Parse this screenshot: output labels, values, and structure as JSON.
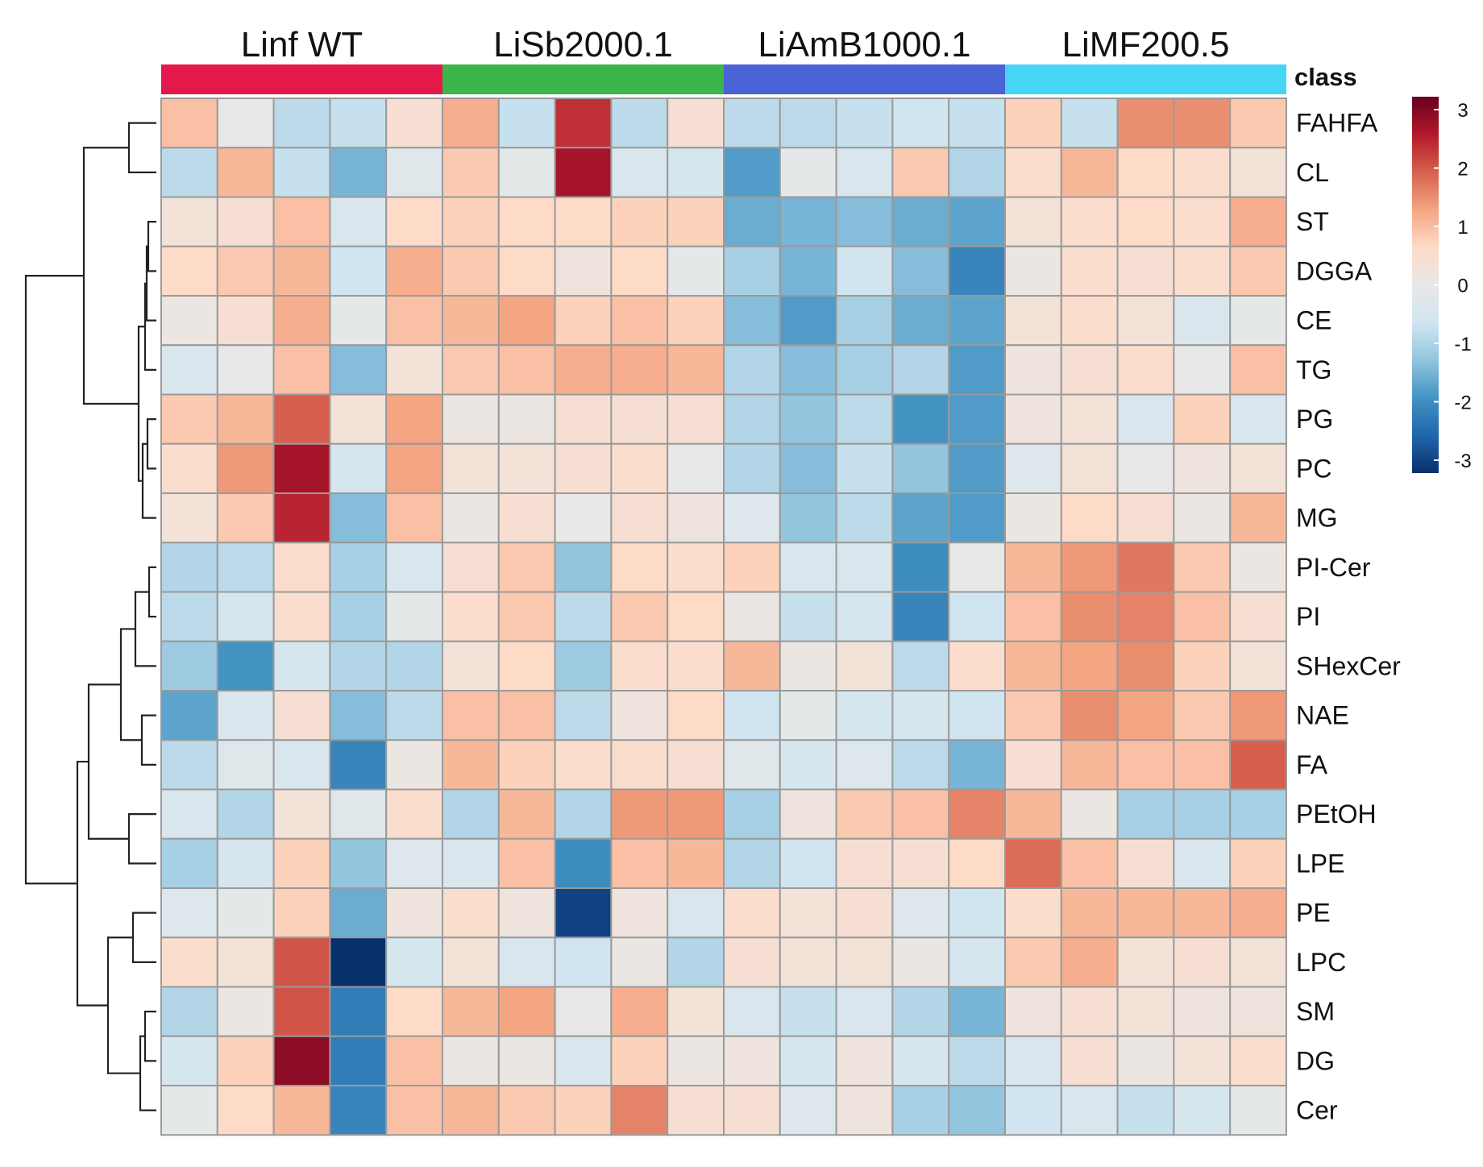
{
  "chart_data": {
    "type": "heatmap",
    "title": "",
    "class_label": "class",
    "groups": [
      {
        "name": "Linf WT",
        "color": "#E4184A",
        "samples": 5
      },
      {
        "name": "LiSb2000.1",
        "color": "#3CB54A",
        "samples": 5
      },
      {
        "name": "LiAmB1000.1",
        "color": "#4A63D6",
        "samples": 5
      },
      {
        "name": "LiMF200.5",
        "color": "#45D6F5",
        "samples": 5
      }
    ],
    "rows": [
      "FAHFA",
      "CL",
      "ST",
      "DGGA",
      "CE",
      "TG",
      "PG",
      "PC",
      "MG",
      "PI-Cer",
      "PI",
      "SHexCer",
      "NAE",
      "FA",
      "PEtOH",
      "LPE",
      "PE",
      "LPC",
      "SM",
      "DG",
      "Cer"
    ],
    "values": [
      [
        0.9,
        0.0,
        -0.8,
        -0.7,
        0.4,
        1.1,
        -0.7,
        2.2,
        -0.8,
        0.4,
        -0.8,
        -0.8,
        -0.7,
        -0.6,
        -0.7,
        0.7,
        -0.7,
        1.4,
        1.4,
        0.8
      ],
      [
        -0.8,
        1.0,
        -0.7,
        -1.4,
        -0.2,
        0.8,
        -0.1,
        2.5,
        -0.4,
        -0.5,
        -1.7,
        -0.1,
        -0.4,
        0.8,
        -0.9,
        0.5,
        1.0,
        0.6,
        0.5,
        0.3
      ],
      [
        0.3,
        0.4,
        0.9,
        -0.4,
        0.6,
        0.7,
        0.6,
        0.6,
        0.7,
        0.7,
        -1.5,
        -1.4,
        -1.3,
        -1.5,
        -1.6,
        0.3,
        0.5,
        0.6,
        0.5,
        1.1
      ],
      [
        0.6,
        0.8,
        1.0,
        -0.6,
        1.1,
        0.8,
        0.6,
        0.2,
        0.6,
        -0.1,
        -1.0,
        -1.4,
        -0.6,
        -1.3,
        -2.0,
        0.1,
        0.5,
        0.4,
        0.5,
        0.8
      ],
      [
        0.1,
        0.4,
        1.1,
        -0.1,
        0.9,
        1.0,
        1.2,
        0.7,
        0.9,
        0.7,
        -1.3,
        -1.7,
        -1.0,
        -1.5,
        -1.6,
        0.3,
        0.5,
        0.3,
        -0.4,
        -0.1
      ],
      [
        -0.4,
        0.0,
        0.9,
        -1.3,
        0.3,
        0.8,
        0.9,
        1.1,
        1.1,
        1.0,
        -0.9,
        -1.3,
        -1.0,
        -0.9,
        -1.7,
        0.2,
        0.4,
        0.5,
        0.0,
        0.9
      ],
      [
        0.8,
        1.0,
        1.8,
        0.3,
        1.2,
        0.1,
        0.1,
        0.4,
        0.4,
        0.4,
        -0.9,
        -1.2,
        -0.8,
        -1.8,
        -1.7,
        0.2,
        0.3,
        -0.4,
        0.7,
        -0.4
      ],
      [
        0.5,
        1.3,
        2.5,
        -0.5,
        1.2,
        0.3,
        0.3,
        0.4,
        0.5,
        0.0,
        -0.9,
        -1.3,
        -0.7,
        -1.2,
        -1.7,
        -0.3,
        0.3,
        0.0,
        0.2,
        0.3
      ],
      [
        0.3,
        0.8,
        2.3,
        -1.3,
        0.9,
        0.1,
        0.4,
        0.0,
        0.4,
        0.2,
        -0.3,
        -1.2,
        -0.8,
        -1.6,
        -1.7,
        0.1,
        0.6,
        0.4,
        0.1,
        1.0
      ],
      [
        -0.9,
        -0.8,
        0.5,
        -1.0,
        -0.4,
        0.4,
        0.8,
        -1.2,
        0.6,
        0.5,
        0.7,
        -0.4,
        -0.4,
        -1.9,
        0.0,
        1.0,
        1.3,
        1.6,
        0.8,
        0.1
      ],
      [
        -0.8,
        -0.5,
        0.5,
        -1.0,
        -0.1,
        0.5,
        0.8,
        -0.8,
        0.8,
        0.6,
        0.1,
        -0.7,
        -0.5,
        -2.0,
        -0.6,
        0.9,
        1.4,
        1.5,
        0.9,
        0.4
      ],
      [
        -1.1,
        -1.8,
        -0.5,
        -0.9,
        -0.9,
        0.3,
        0.6,
        -1.1,
        0.5,
        0.5,
        1.0,
        0.1,
        0.3,
        -0.8,
        0.5,
        1.0,
        1.2,
        1.4,
        0.7,
        0.3
      ],
      [
        -1.6,
        -0.4,
        0.4,
        -1.3,
        -0.8,
        0.9,
        0.9,
        -0.8,
        0.2,
        0.6,
        -0.6,
        -0.1,
        -0.5,
        -0.5,
        -0.6,
        0.8,
        1.4,
        1.2,
        0.8,
        1.3
      ],
      [
        -0.8,
        -0.2,
        -0.4,
        -2.0,
        0.1,
        1.0,
        0.7,
        0.5,
        0.5,
        0.4,
        -0.2,
        -0.5,
        -0.3,
        -0.8,
        -1.4,
        0.4,
        1.0,
        0.9,
        0.9,
        1.8
      ],
      [
        -0.4,
        -0.9,
        0.3,
        -0.2,
        0.5,
        -0.9,
        1.0,
        -0.9,
        1.3,
        1.3,
        -1.0,
        0.2,
        0.8,
        0.9,
        1.5,
        1.0,
        0.1,
        -1.0,
        -1.0,
        -1.0
      ],
      [
        -1.0,
        -0.5,
        0.7,
        -1.2,
        -0.3,
        -0.4,
        0.9,
        -1.9,
        0.9,
        1.0,
        -0.9,
        -0.6,
        0.4,
        0.4,
        0.6,
        1.7,
        0.9,
        0.4,
        -0.4,
        0.7
      ],
      [
        -0.3,
        -0.1,
        0.7,
        -1.5,
        0.2,
        0.5,
        0.2,
        -2.8,
        0.2,
        -0.4,
        0.5,
        0.3,
        0.4,
        -0.3,
        -0.6,
        0.5,
        1.0,
        1.0,
        1.0,
        1.1
      ],
      [
        0.5,
        0.3,
        1.9,
        -3.0,
        -0.5,
        0.3,
        -0.4,
        -0.6,
        0.1,
        -0.9,
        0.4,
        0.3,
        0.3,
        0.1,
        -0.5,
        0.8,
        1.1,
        0.3,
        0.4,
        0.3
      ],
      [
        -0.9,
        0.1,
        1.9,
        -2.1,
        0.6,
        1.0,
        1.2,
        0.0,
        1.1,
        0.3,
        -0.4,
        -0.7,
        -0.4,
        -0.9,
        -1.4,
        0.2,
        0.4,
        0.3,
        0.2,
        0.2
      ],
      [
        -0.5,
        0.7,
        2.7,
        -2.1,
        0.9,
        0.1,
        0.1,
        -0.4,
        0.7,
        0.1,
        0.2,
        -0.5,
        0.2,
        -0.5,
        -0.8,
        -0.4,
        0.4,
        0.1,
        0.3,
        0.5
      ],
      [
        -0.1,
        0.6,
        1.0,
        -2.0,
        0.9,
        1.0,
        0.8,
        0.7,
        1.5,
        0.4,
        0.4,
        -0.3,
        0.2,
        -1.0,
        -1.2,
        -0.6,
        -0.4,
        -0.7,
        -0.5,
        -0.1
      ]
    ],
    "scale": {
      "min": -3,
      "max": 3,
      "ticks": [
        "3",
        "2",
        "1",
        "0",
        "-1",
        "-2",
        "-3"
      ],
      "colors": [
        "#08306B",
        "#2166AC",
        "#4393C3",
        "#92C5DE",
        "#D1E5F0",
        "#E8E8E8",
        "#FDDBC7",
        "#F4A582",
        "#D6604D",
        "#B2182B",
        "#67001F"
      ]
    },
    "dendrogram": "rows clustered (hierarchical)",
    "legend_position": "right"
  }
}
